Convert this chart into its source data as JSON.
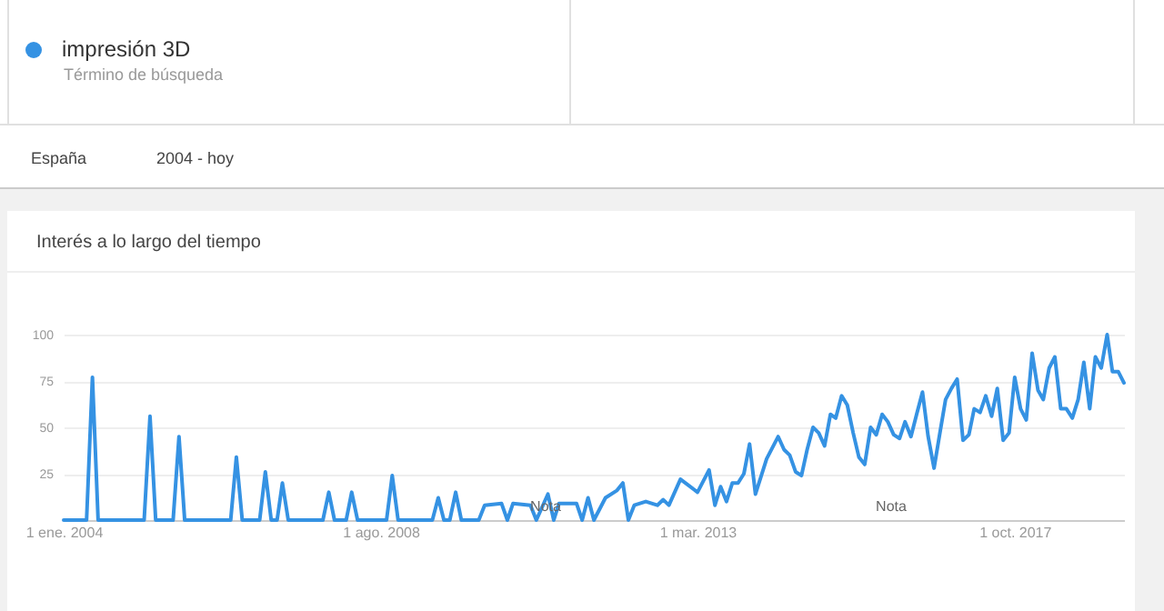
{
  "chart_data": {
    "type": "line",
    "title": "Interés a lo largo del tiempo",
    "annotations": [
      "Término de búsqueda",
      "España",
      "2004 - hoy",
      "Nota",
      "Nota"
    ],
    "x": [
      "2004-01",
      "2004-05",
      "2004-06",
      "2004-07",
      "2005-03",
      "2005-04",
      "2005-05",
      "2005-08",
      "2005-09",
      "2005-10",
      "2006-06",
      "2006-07",
      "2006-08",
      "2006-11",
      "2006-12",
      "2007-01",
      "2007-02",
      "2007-03",
      "2007-04",
      "2007-10",
      "2007-11",
      "2007-12",
      "2008-02",
      "2008-03",
      "2008-04",
      "2008-09",
      "2008-10",
      "2008-11",
      "2009-05",
      "2009-06",
      "2009-07",
      "2009-08",
      "2009-09",
      "2009-10",
      "2010-01",
      "2010-02",
      "2010-05",
      "2010-06",
      "2010-07",
      "2010-10",
      "2010-11",
      "2011-01",
      "2011-02",
      "2011-03",
      "2011-06",
      "2011-07",
      "2011-08",
      "2011-09",
      "2011-11",
      "2012-01",
      "2012-02",
      "2012-03",
      "2012-04",
      "2012-06",
      "2012-08",
      "2012-09",
      "2012-10",
      "2012-12",
      "2013-03",
      "2013-05",
      "2013-06",
      "2013-07",
      "2013-08",
      "2013-09",
      "2013-10",
      "2013-11",
      "2013-12",
      "2014-01",
      "2014-03",
      "2014-05",
      "2014-06",
      "2014-07",
      "2014-08",
      "2014-09",
      "2014-10",
      "2014-11",
      "2014-12",
      "2015-01",
      "2015-02",
      "2015-03",
      "2015-04",
      "2015-05",
      "2015-06",
      "2015-07",
      "2015-08",
      "2015-09",
      "2015-10",
      "2015-11",
      "2015-12",
      "2016-01",
      "2016-02",
      "2016-03",
      "2016-04",
      "2016-05",
      "2016-06",
      "2016-07",
      "2016-08",
      "2016-09",
      "2016-10",
      "2016-11",
      "2016-12",
      "2017-01",
      "2017-02",
      "2017-03",
      "2017-04",
      "2017-05",
      "2017-06",
      "2017-07",
      "2017-08",
      "2017-09",
      "2017-10",
      "2017-11",
      "2017-12",
      "2018-01",
      "2018-02",
      "2018-03",
      "2018-04",
      "2018-05",
      "2018-06",
      "2018-07",
      "2018-08",
      "2018-09",
      "2018-10",
      "2018-11",
      "2018-12",
      "2019-01",
      "2019-02",
      "2019-03",
      "2019-04",
      "2019-05"
    ],
    "series": [
      {
        "name": "impresión 3D",
        "color": "#3592e3",
        "values": [
          0,
          0,
          77,
          0,
          0,
          56,
          0,
          0,
          45,
          0,
          0,
          34,
          0,
          0,
          26,
          0,
          0,
          20,
          0,
          0,
          15,
          0,
          0,
          15,
          0,
          0,
          24,
          0,
          0,
          12,
          0,
          0,
          15,
          0,
          0,
          8,
          9,
          0,
          9,
          8,
          0,
          14,
          0,
          9,
          9,
          0,
          12,
          0,
          12,
          16,
          20,
          0,
          8,
          10,
          8,
          11,
          8,
          22,
          15,
          27,
          8,
          18,
          10,
          20,
          20,
          25,
          41,
          14,
          33,
          45,
          38,
          35,
          26,
          24,
          38,
          50,
          47,
          40,
          57,
          55,
          67,
          62,
          47,
          34,
          30,
          50,
          46,
          57,
          53,
          46,
          44,
          53,
          45,
          57,
          69,
          45,
          28,
          47,
          65,
          71,
          76,
          43,
          46,
          60,
          58,
          67,
          56,
          71,
          43,
          47,
          77,
          60,
          54,
          90,
          70,
          65,
          82,
          88,
          60,
          60,
          55,
          65,
          85,
          60,
          88,
          82,
          100,
          80,
          80,
          74
        ]
      }
    ],
    "xlim": [
      "2004-01",
      "2019-05"
    ],
    "xticks": [
      {
        "value": "2004-01",
        "label": "1 ene. 2004"
      },
      {
        "value": "2008-08",
        "label": "1 ago. 2008"
      },
      {
        "value": "2013-03",
        "label": "1 mar. 2013"
      },
      {
        "value": "2017-10",
        "label": "1 oct. 2017"
      }
    ],
    "ylim": [
      0,
      100
    ],
    "yticks": [
      25,
      50,
      75,
      100
    ],
    "grid": "y",
    "legend": "top left",
    "marker": "none",
    "line_style": "solid"
  }
}
